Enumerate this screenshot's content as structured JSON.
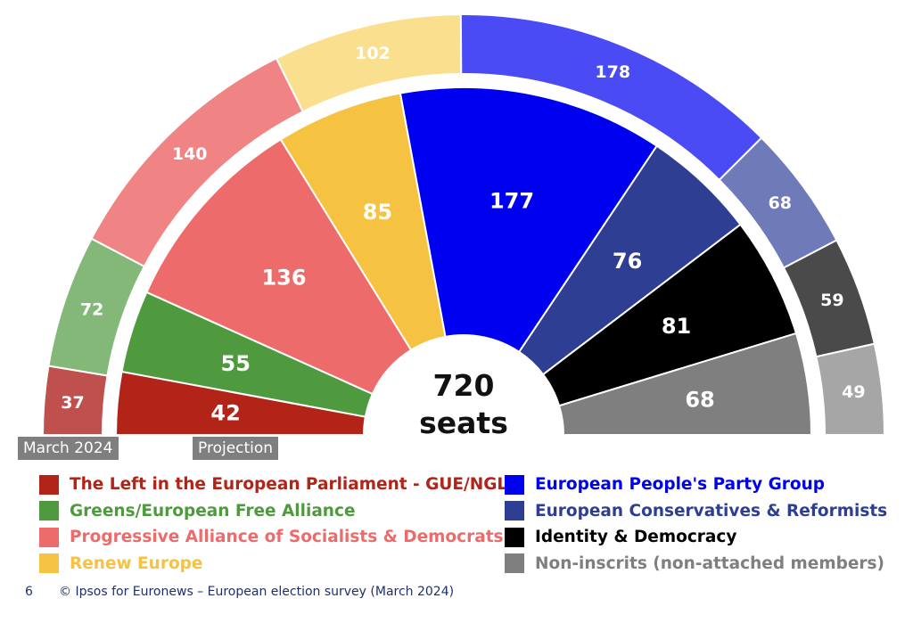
{
  "chart_data": {
    "type": "parliament",
    "total_seats": 720,
    "center_label": {
      "number": "720",
      "unit": "seats"
    },
    "rings": [
      {
        "name": "March 2024",
        "values": [
          37,
          72,
          140,
          102,
          178,
          68,
          59,
          49
        ]
      },
      {
        "name": "Projection",
        "values": [
          42,
          55,
          136,
          85,
          177,
          76,
          81,
          68
        ]
      }
    ],
    "groups": [
      {
        "name": "The Left in the European Parliament - GUE/NGL",
        "outer_color": "#c0504d",
        "inner_color": "#b22418",
        "text_color": "#b22418"
      },
      {
        "name": "Greens/European Free Alliance",
        "outer_color": "#84b878",
        "inner_color": "#4f9a3f",
        "text_color": "#4f9a3f"
      },
      {
        "name": "Progressive Alliance of Socialists & Democrats",
        "outer_color": "#f08383",
        "inner_color": "#ee6b6b",
        "text_color": "#ee6b6b"
      },
      {
        "name": "Renew Europe",
        "outer_color": "#fadf8e",
        "inner_color": "#f5c242",
        "text_color": "#f5c242"
      },
      {
        "name": "European People's Party Group",
        "outer_color": "#4b4bf5",
        "inner_color": "#0000f0",
        "text_color": "#0000f0"
      },
      {
        "name": "European Conservatives & Reformists",
        "outer_color": "#6f7ab8",
        "inner_color": "#2e3f93",
        "text_color": "#2e3f93"
      },
      {
        "name": "Identity & Democracy",
        "outer_color": "#4a4a4a",
        "inner_color": "#000000",
        "text_color": "#000000"
      },
      {
        "name": "Non-inscrits (non-attached members)",
        "outer_color": "#a6a6a6",
        "inner_color": "#7f7f7f",
        "text_color": "#7f7f7f"
      }
    ]
  },
  "labels": {
    "outer_ring": "March 2024",
    "inner_ring": "Projection"
  },
  "footer": {
    "page_number": "6",
    "text": "© Ipsos for Euronews – European election survey (March 2024)"
  }
}
